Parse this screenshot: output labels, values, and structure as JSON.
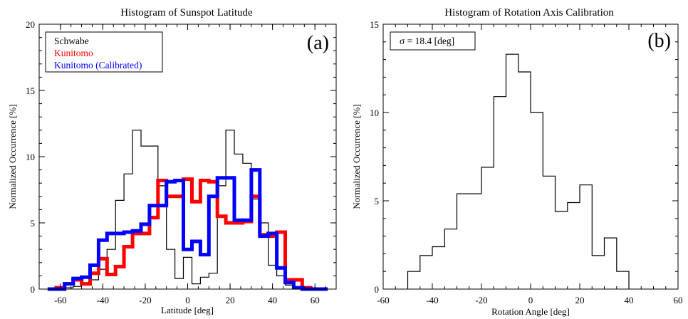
{
  "chart_data": [
    {
      "type": "histogram",
      "panel_label": "(a)",
      "title": "Histogram of Sunspot Latitude",
      "xlabel": "Latitude [deg]",
      "ylabel": "Normalized Occurrence [%]",
      "xlim": [
        -70,
        70
      ],
      "ylim": [
        0,
        20
      ],
      "xticks": [
        -60,
        -40,
        -20,
        0,
        20,
        40,
        60
      ],
      "yticks": [
        0,
        5,
        10,
        15,
        20
      ],
      "legend_position": "top-left",
      "series": [
        {
          "name": "Schwabe",
          "color": "#000000",
          "line": "thin",
          "edges": [
            -66,
            -62,
            -58,
            -54,
            -50,
            -46,
            -42,
            -38,
            -34,
            -30,
            -26,
            -22,
            -18,
            -14,
            -10,
            -6,
            -2,
            2,
            6,
            10,
            14,
            18,
            22,
            26,
            30,
            34,
            38,
            42,
            46,
            50,
            54,
            58,
            62,
            66
          ],
          "values": [
            0.0,
            0.0,
            0.1,
            0.2,
            0.4,
            0.7,
            1.5,
            3.0,
            6.7,
            8.7,
            12.0,
            10.8,
            10.8,
            7.8,
            3.0,
            0.8,
            2.4,
            0.4,
            0.9,
            1.2,
            7.8,
            12.0,
            10.2,
            9.5,
            6.8,
            5.0,
            1.8,
            1.0,
            0.3,
            0.1,
            0.0,
            0.0,
            0.0
          ]
        },
        {
          "name": "Kunitomo",
          "color": "#ff0000",
          "line": "thick",
          "edges": [
            -66,
            -62,
            -58,
            -54,
            -50,
            -46,
            -42,
            -38,
            -34,
            -30,
            -26,
            -22,
            -18,
            -14,
            -10,
            -6,
            -2,
            2,
            6,
            10,
            14,
            18,
            22,
            26,
            30,
            34,
            38,
            42,
            46,
            50,
            54,
            58,
            62,
            66
          ],
          "values": [
            0.0,
            0.1,
            0.4,
            0.7,
            0.4,
            1.2,
            2.3,
            1.1,
            1.7,
            3.2,
            4.2,
            4.2,
            5.4,
            8.2,
            7.0,
            7.0,
            8.3,
            6.6,
            8.2,
            8.1,
            5.5,
            5.0,
            5.0,
            5.1,
            7.0,
            4.1,
            4.0,
            4.3,
            0.7,
            0.7,
            0.1,
            0.0,
            0.0
          ]
        },
        {
          "name": "Kunitomo (Calibrated)",
          "color": "#0000ff",
          "line": "thick",
          "edges": [
            -66,
            -62,
            -58,
            -54,
            -50,
            -46,
            -42,
            -38,
            -34,
            -30,
            -26,
            -22,
            -18,
            -14,
            -10,
            -6,
            -2,
            2,
            6,
            10,
            14,
            18,
            22,
            26,
            30,
            34,
            38,
            42,
            46,
            50,
            54,
            58,
            62,
            66
          ],
          "values": [
            0.0,
            0.0,
            0.4,
            0.8,
            0.9,
            1.8,
            3.7,
            4.2,
            4.2,
            4.3,
            4.4,
            4.9,
            6.3,
            6.3,
            8.1,
            8.2,
            3.0,
            3.6,
            2.6,
            7.0,
            8.4,
            8.4,
            5.2,
            5.2,
            9.0,
            4.0,
            4.2,
            1.6,
            0.5,
            0.1,
            0.0,
            0.0,
            0.0
          ]
        }
      ]
    },
    {
      "type": "histogram",
      "panel_label": "(b)",
      "title": "Histogram of Rotation Axis Calibration",
      "xlabel": "Rotation Angle [deg]",
      "ylabel": "Normalized Occurrence [%]",
      "xlim": [
        -60,
        60
      ],
      "ylim": [
        0,
        15
      ],
      "xticks": [
        -60,
        -40,
        -20,
        0,
        20,
        40,
        60
      ],
      "yticks": [
        0,
        5,
        10,
        15
      ],
      "annotation": "σ = 18.4 [deg]",
      "series": [
        {
          "color": "#000000",
          "line": "thin",
          "edges": [
            -50,
            -45,
            -40,
            -35,
            -30,
            -25,
            -20,
            -15,
            -10,
            -5,
            0,
            5,
            10,
            15,
            20,
            25,
            30,
            35,
            40
          ],
          "values": [
            1.0,
            1.9,
            2.4,
            3.4,
            5.4,
            5.4,
            6.9,
            10.9,
            13.3,
            12.3,
            10.0,
            6.4,
            4.4,
            4.9,
            5.9,
            1.9,
            2.9,
            1.0
          ]
        }
      ]
    }
  ]
}
